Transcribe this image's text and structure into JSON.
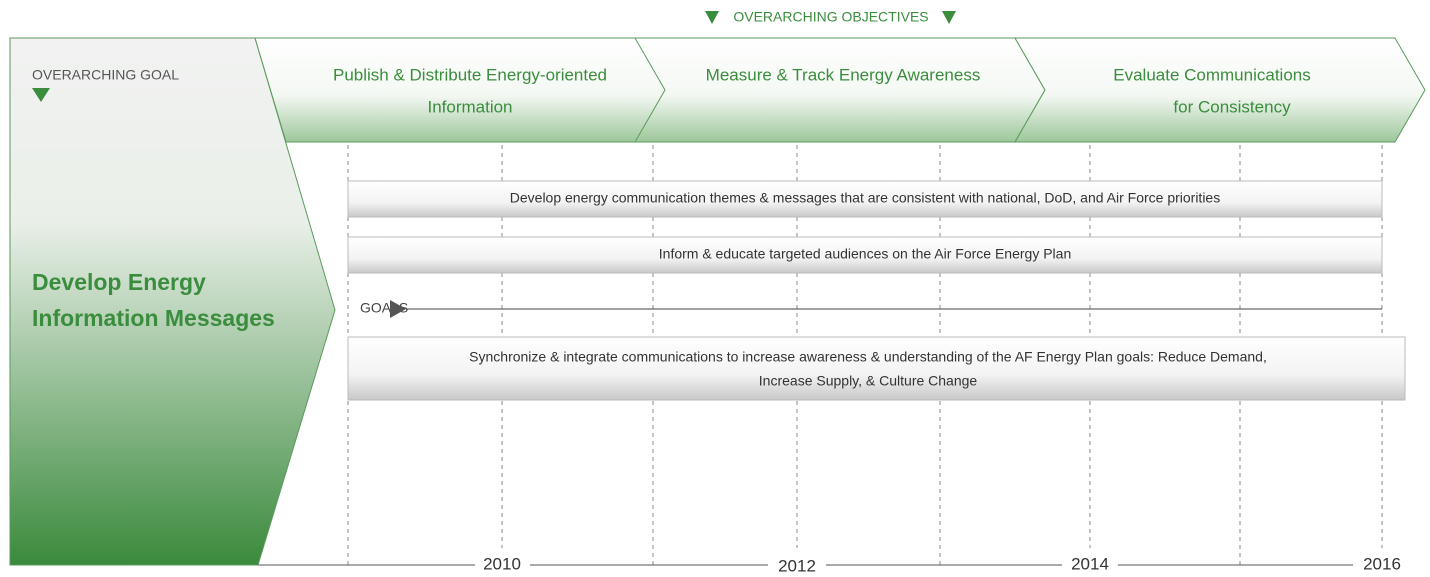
{
  "header": {
    "objectives_label": "OVERARCHING OBJECTIVES",
    "goal_label": "OVERARCHING GOAL"
  },
  "goal": [
    "Develop Energy",
    "Information Messages"
  ],
  "objectives": [
    [
      "Publish & Distribute Energy-oriented",
      "Information"
    ],
    [
      "Measure & Track Energy Awareness"
    ],
    [
      "Evaluate Communications",
      "for Consistency"
    ]
  ],
  "tasks": [
    [
      "Develop energy communication themes & messages that are consistent with national, DoD, and Air Force priorities"
    ],
    [
      "Inform & educate targeted audiences on the Air Force Energy Plan"
    ],
    [
      "Synchronize & integrate communications to increase awareness & understanding of the AF Energy Plan goals: Reduce Demand,",
      "Increase Supply, & Culture Change"
    ]
  ],
  "goals_label": "GOALS",
  "years": [
    "2010",
    "2012",
    "2014",
    "2016"
  ]
}
